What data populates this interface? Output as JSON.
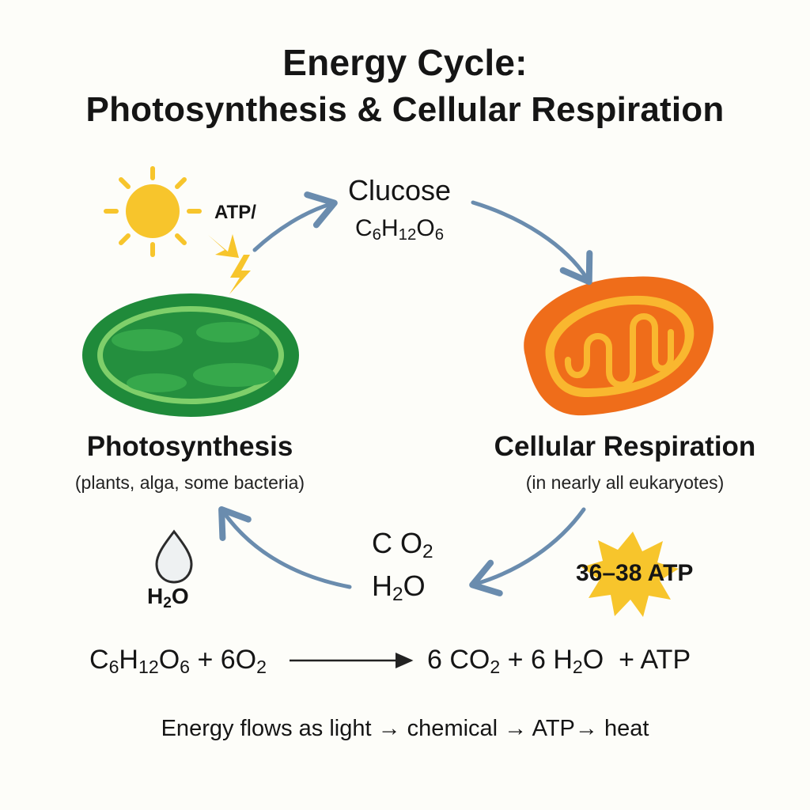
{
  "title": {
    "line1": "Energy Cycle:",
    "line2": "Photosynthesis & Cellular Respiration"
  },
  "photosynthesis": {
    "heading": "Photosynthesis",
    "subtitle": "(plants, alga, some bacteria)",
    "atp_label": "ATP/"
  },
  "glucose": {
    "name": "Clucose",
    "formula": {
      "c": "C",
      "c_sub": "6",
      "h": "H",
      "h_sub": "12",
      "o": "O",
      "o_sub": "6"
    }
  },
  "respiration": {
    "heading": "Cellular Respiration",
    "subtitle": "(in nearly all eukaryotes)",
    "atp_yield": "36–38 ATP"
  },
  "products_center": {
    "co2": {
      "a": "C O",
      "sub": "2"
    },
    "h2o": {
      "a": "H",
      "sub": "2",
      "b": "O"
    }
  },
  "water_drop": {
    "label": {
      "a": "H",
      "sub": "2",
      "b": "O"
    }
  },
  "equation": {
    "left": {
      "c": "C",
      "c_sub": "6",
      "h": "H",
      "h_sub": "12",
      "o": "O",
      "o_sub": "6",
      "plus": " + 6O",
      "o2_sub": "2"
    },
    "right": {
      "a": "6 CO",
      "sub1": "2",
      "b": " + 6 H",
      "sub2": "2",
      "c": "O  + ATP"
    }
  },
  "footer": {
    "part1": "Energy flows as light",
    "arrow": "→",
    "part2": " chemical ",
    "part3": " ATP",
    "part4": " heat"
  },
  "colors": {
    "arrow": "#6a8cae",
    "sun": "#f7c52c",
    "chloroplast_dark": "#1f8a3a",
    "chloroplast_light": "#7fcf6a",
    "mitochondrion_outer": "#ef6d1a",
    "mitochondrion_inner": "#f9b72f",
    "atp_burst": "#f7c52c"
  }
}
